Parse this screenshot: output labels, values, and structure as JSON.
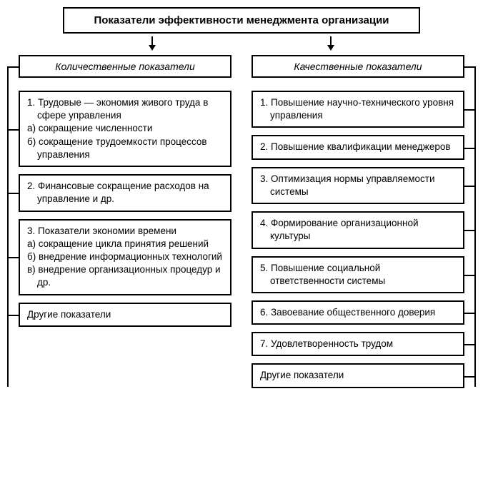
{
  "title": "Показатели эффективности менеджмента организации",
  "left": {
    "header": "Количественные показатели",
    "items": [
      {
        "lines": [
          "1. Трудовые — экономия живого труда в сфере управления",
          "а) сокращение численности",
          "б) сокращение трудоемкости процессов управления"
        ]
      },
      {
        "lines": [
          "2. Финансовые сокращение расходов на управление и др."
        ]
      },
      {
        "lines": [
          "3. Показатели экономии времени",
          "а) сокращение цикла принятия решений",
          "б) внедрение информационных технологий",
          "в) внедрение организационных процедур и др."
        ]
      },
      {
        "lines": [
          "Другие показатели"
        ]
      }
    ]
  },
  "right": {
    "header": "Качественные показатели",
    "items": [
      {
        "lines": [
          "1. Повышение научно-технического уровня управления"
        ]
      },
      {
        "lines": [
          "2. Повышение квалификации менеджеров"
        ]
      },
      {
        "lines": [
          "3. Оптимизация нормы управляемости системы"
        ]
      },
      {
        "lines": [
          "4. Формирование организационной культуры"
        ]
      },
      {
        "lines": [
          "5. Повышение социальной ответственности системы"
        ]
      },
      {
        "lines": [
          "6. Завоевание общественного доверия"
        ]
      },
      {
        "lines": [
          "7. Удовлетворенность трудом"
        ]
      },
      {
        "lines": [
          "Другие показатели"
        ]
      }
    ]
  },
  "style": {
    "border_color": "#000000",
    "background": "#ffffff",
    "title_fontsize": 15,
    "header_fontsize": 14,
    "item_fontsize": 13.5,
    "box_gap": 10,
    "col_gap": 28
  }
}
